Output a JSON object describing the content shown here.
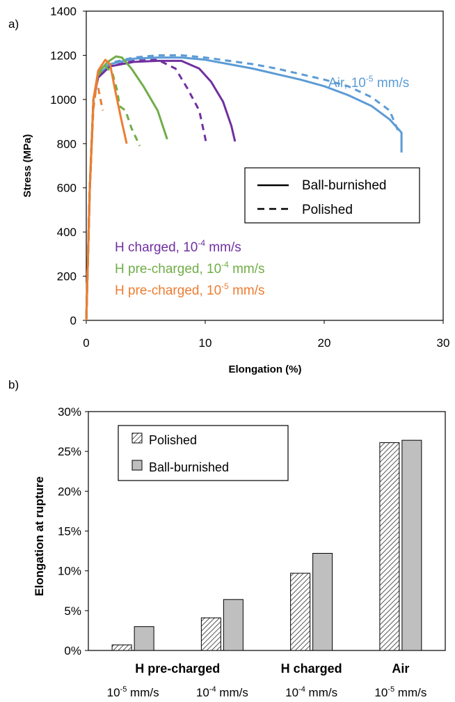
{
  "panel_labels": {
    "a": "a)",
    "b": "b)"
  },
  "chart_data": [
    {
      "type": "line",
      "xlabel": "Elongation (%)",
      "ylabel": "Stress (MPa)",
      "xlim": [
        0,
        30
      ],
      "ylim": [
        0,
        1400
      ],
      "xticks": [
        "0",
        "10",
        "20",
        "30"
      ],
      "yticks": [
        "0",
        "200",
        "400",
        "600",
        "800",
        "1000",
        "1200",
        "1400"
      ],
      "legend": {
        "placement": "right-middle",
        "entries": [
          {
            "label": "Ball-burnished",
            "style": "solid"
          },
          {
            "label": "Polished",
            "style": "dashed"
          }
        ]
      },
      "annotations": [
        {
          "base": "Air, 10",
          "exp": "-5",
          "tail": " mm/s",
          "color": "#5b9bd5"
        },
        {
          "base": "H charged, 10",
          "exp": "-4",
          "tail": " mm/s",
          "color": "#7030a0"
        },
        {
          "base": "H pre-charged, 10",
          "exp": "-4",
          "tail": " mm/s",
          "color": "#70ad47"
        },
        {
          "base": "H pre-charged, 10",
          "exp": "-5",
          "tail": " mm/s",
          "color": "#ed7d31"
        }
      ],
      "series": [
        {
          "condition": "Air, 1e-5 mm/s",
          "finish": "Ball-burnished",
          "style": "solid",
          "color": "#5b9bd5",
          "points": [
            [
              0,
              0
            ],
            [
              0.3,
              600
            ],
            [
              0.6,
              1000
            ],
            [
              1.0,
              1110
            ],
            [
              2,
              1160
            ],
            [
              4,
              1185
            ],
            [
              6,
              1190
            ],
            [
              8,
              1190
            ],
            [
              10,
              1180
            ],
            [
              12,
              1160
            ],
            [
              14,
              1140
            ],
            [
              16,
              1115
            ],
            [
              18,
              1090
            ],
            [
              20,
              1060
            ],
            [
              22,
              1020
            ],
            [
              24,
              970
            ],
            [
              25.5,
              910
            ],
            [
              26.5,
              850
            ],
            [
              26.5,
              760
            ]
          ]
        },
        {
          "condition": "Air, 1e-5 mm/s",
          "finish": "Polished",
          "style": "dashed",
          "color": "#5b9bd5",
          "points": [
            [
              0,
              0
            ],
            [
              0.3,
              600
            ],
            [
              0.6,
              1000
            ],
            [
              1.0,
              1110
            ],
            [
              2,
              1165
            ],
            [
              4,
              1190
            ],
            [
              6,
              1200
            ],
            [
              8,
              1200
            ],
            [
              10,
              1190
            ],
            [
              12,
              1175
            ],
            [
              14,
              1160
            ],
            [
              16,
              1140
            ],
            [
              18,
              1115
            ],
            [
              20,
              1090
            ],
            [
              22,
              1060
            ],
            [
              24,
              1010
            ],
            [
              25.5,
              950
            ],
            [
              26.2,
              860
            ]
          ]
        },
        {
          "condition": "H charged, 1e-4 mm/s",
          "finish": "Ball-burnished",
          "style": "solid",
          "color": "#7030a0",
          "points": [
            [
              0,
              0
            ],
            [
              0.3,
              600
            ],
            [
              0.6,
              1000
            ],
            [
              1.0,
              1100
            ],
            [
              2,
              1150
            ],
            [
              4,
              1170
            ],
            [
              6,
              1175
            ],
            [
              8,
              1175
            ],
            [
              9.5,
              1140
            ],
            [
              10.5,
              1080
            ],
            [
              11.5,
              990
            ],
            [
              12.2,
              880
            ],
            [
              12.5,
              810
            ]
          ]
        },
        {
          "condition": "H charged, 1e-4 mm/s",
          "finish": "Polished",
          "style": "dashed",
          "color": "#7030a0",
          "points": [
            [
              0,
              0
            ],
            [
              0.3,
              600
            ],
            [
              0.6,
              1000
            ],
            [
              1.0,
              1100
            ],
            [
              2,
              1150
            ],
            [
              4,
              1175
            ],
            [
              6,
              1180
            ],
            [
              7.5,
              1140
            ],
            [
              8.5,
              1050
            ],
            [
              9.5,
              950
            ],
            [
              10.1,
              800
            ]
          ]
        },
        {
          "condition": "H pre-charged, 1e-4 mm/s",
          "finish": "Ball-burnished",
          "style": "solid",
          "color": "#70ad47",
          "points": [
            [
              0,
              0
            ],
            [
              0.3,
              600
            ],
            [
              0.6,
              1000
            ],
            [
              1.0,
              1120
            ],
            [
              1.8,
              1170
            ],
            [
              2.5,
              1195
            ],
            [
              3.0,
              1190
            ],
            [
              3.8,
              1140
            ],
            [
              4.8,
              1060
            ],
            [
              6.0,
              950
            ],
            [
              6.8,
              820
            ]
          ]
        },
        {
          "condition": "H pre-charged, 1e-4 mm/s",
          "finish": "Polished",
          "style": "dashed",
          "color": "#70ad47",
          "points": [
            [
              0,
              0
            ],
            [
              0.3,
              600
            ],
            [
              0.6,
              1000
            ],
            [
              1.0,
              1110
            ],
            [
              1.6,
              1150
            ],
            [
              2.2,
              1120
            ],
            [
              2.6,
              1040
            ],
            [
              2.8,
              970
            ],
            [
              3.3,
              950
            ],
            [
              3.8,
              870
            ],
            [
              4.5,
              790
            ]
          ]
        },
        {
          "condition": "H pre-charged, 1e-5 mm/s",
          "finish": "Ball-burnished",
          "style": "solid",
          "color": "#ed7d31",
          "points": [
            [
              0,
              0
            ],
            [
              0.3,
              600
            ],
            [
              0.6,
              1000
            ],
            [
              1.0,
              1130
            ],
            [
              1.6,
              1180
            ],
            [
              2.0,
              1160
            ],
            [
              2.4,
              1050
            ],
            [
              2.9,
              920
            ],
            [
              3.4,
              800
            ]
          ]
        },
        {
          "condition": "H pre-charged, 1e-5 mm/s",
          "finish": "Polished",
          "style": "dashed",
          "color": "#ed7d31",
          "points": [
            [
              0,
              0
            ],
            [
              0.3,
              600
            ],
            [
              0.6,
              960
            ],
            [
              0.9,
              1080
            ],
            [
              1.2,
              1000
            ],
            [
              1.4,
              950
            ]
          ]
        }
      ]
    },
    {
      "type": "bar",
      "ylabel": "Elongation at rupture",
      "ylim": [
        0,
        30
      ],
      "yticks": [
        "0%",
        "5%",
        "10%",
        "15%",
        "20%",
        "25%",
        "30%"
      ],
      "legend": {
        "placement": "top-left",
        "entries": [
          {
            "label": "Polished",
            "pattern": "hatched"
          },
          {
            "label": "Ball-burnished",
            "pattern": "gray"
          }
        ]
      },
      "categories": [
        {
          "rate_base": "10",
          "rate_exp": "-5",
          "rate_tail": " mm/s"
        },
        {
          "rate_base": "10",
          "rate_exp": "-4",
          "rate_tail": " mm/s"
        },
        {
          "rate_base": "10",
          "rate_exp": "-4",
          "rate_tail": " mm/s"
        },
        {
          "rate_base": "10",
          "rate_exp": "-5",
          "rate_tail": " mm/s"
        }
      ],
      "groups": [
        {
          "label": "H pre-charged",
          "span": [
            0,
            1
          ]
        },
        {
          "label": "H charged",
          "span": [
            2,
            2
          ]
        },
        {
          "label": "Air",
          "span": [
            3,
            3
          ]
        }
      ],
      "series": [
        {
          "name": "Polished",
          "values": [
            0.7,
            4.1,
            9.7,
            26.1
          ]
        },
        {
          "name": "Ball-burnished",
          "values": [
            3.0,
            6.4,
            12.2,
            26.4
          ]
        }
      ]
    }
  ]
}
